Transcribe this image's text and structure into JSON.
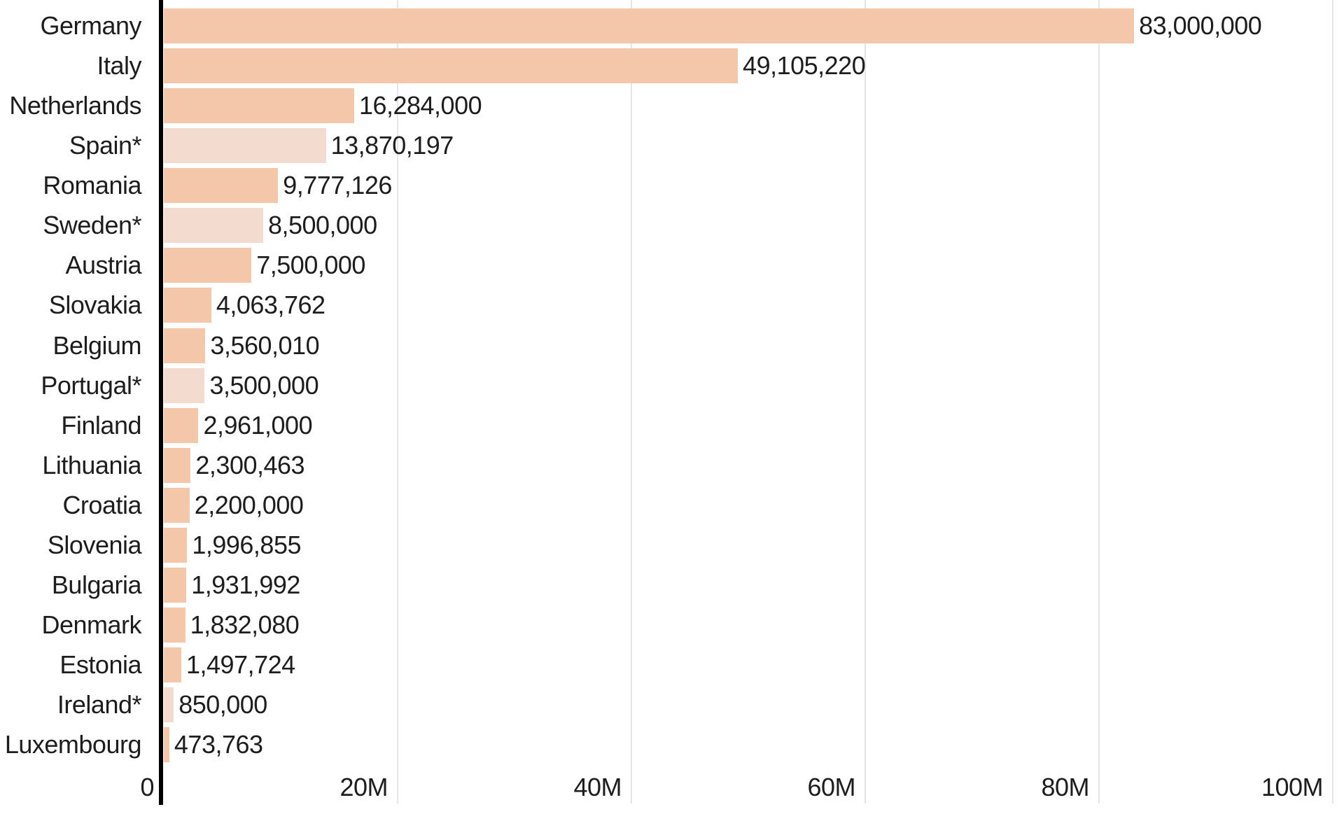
{
  "chart_data": {
    "type": "bar",
    "orientation": "horizontal",
    "categories": [
      "Germany",
      "Italy",
      "Netherlands",
      "Spain*",
      "Romania",
      "Sweden*",
      "Austria",
      "Slovakia",
      "Belgium",
      "Portugal*",
      "Finland",
      "Lithuania",
      "Croatia",
      "Slovenia",
      "Bulgaria",
      "Denmark",
      "Estonia",
      "Ireland*",
      "Luxembourg"
    ],
    "values": [
      83000000,
      49105220,
      16284000,
      13870197,
      9777126,
      8500000,
      7500000,
      4063762,
      3560010,
      3500000,
      2961000,
      2300463,
      2200000,
      1996855,
      1931992,
      1832080,
      1497724,
      850000,
      473763
    ],
    "value_labels": [
      "83,000,000",
      "49,105,220",
      "16,284,000",
      "13,870,197",
      "9,777,126",
      "8,500,000",
      "7,500,000",
      "4,063,762",
      "3,560,010",
      "3,500,000",
      "2,961,000",
      "2,300,463",
      "2,200,000",
      "1,996,855",
      "1,931,992",
      "1,832,080",
      "1,497,724",
      "850,000",
      "473,763"
    ],
    "muted": [
      false,
      false,
      false,
      true,
      false,
      true,
      false,
      false,
      false,
      true,
      false,
      false,
      false,
      false,
      false,
      false,
      false,
      true,
      false
    ],
    "x_axis": {
      "min": 0,
      "max": 100000000,
      "tick_values": [
        0,
        20000000,
        40000000,
        60000000,
        80000000,
        100000000
      ],
      "tick_labels": [
        "0",
        "20M",
        "40M",
        "60M",
        "80M",
        "100M"
      ]
    },
    "grid": "vertical-only",
    "legend": "none",
    "colors": {
      "bar": "#f4c6aa",
      "bar_muted": "#f4dbcf",
      "axis_line": "#000000",
      "gridline": "#e5e5e5",
      "text": "#1d1d1d"
    }
  }
}
